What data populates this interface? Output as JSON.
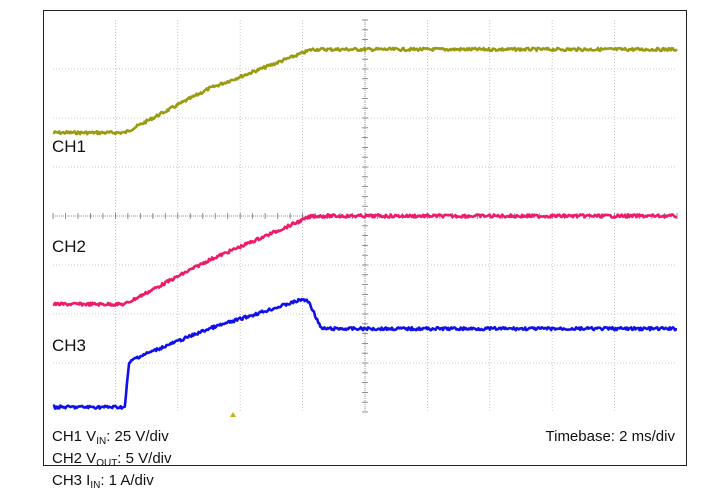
{
  "chart_data": {
    "type": "line",
    "title": "",
    "x_divisions": 10,
    "y_divisions": 8,
    "grid": true,
    "timebase": "Timebase: 2 ms/div",
    "series": [
      {
        "name": "CH1",
        "color": "#9b9b12",
        "unit": "V_IN: 25 V/div",
        "points": [
          [
            0,
            1.7
          ],
          [
            1.15,
            1.7
          ],
          [
            2.5,
            2.6
          ],
          [
            4.15,
            3.4
          ],
          [
            10,
            3.4
          ]
        ]
      },
      {
        "name": "CH2",
        "color": "#ef1a6a",
        "unit": "V_OUT: 5 V/div",
        "points": [
          [
            0,
            -1.8
          ],
          [
            1.15,
            -1.8
          ],
          [
            2.5,
            -0.9
          ],
          [
            4.15,
            0.0
          ],
          [
            10,
            0.0
          ]
        ]
      },
      {
        "name": "CH3",
        "color": "#1010e8",
        "unit": "I_IN: 1 A/div",
        "points": [
          [
            0,
            -3.9
          ],
          [
            1.15,
            -3.9
          ],
          [
            1.22,
            -3.0
          ],
          [
            1.32,
            -2.9
          ],
          [
            2.5,
            -2.3
          ],
          [
            4.0,
            -1.7
          ],
          [
            4.1,
            -1.75
          ],
          [
            4.3,
            -2.3
          ],
          [
            10,
            -2.3
          ]
        ]
      }
    ]
  },
  "labels": {
    "ch1": "CH1",
    "ch2": "CH2",
    "ch3": "CH3"
  },
  "legend": {
    "ch1": {
      "name": "CH1 V",
      "sub": "IN",
      "scale": ": 25 V/div"
    },
    "ch2": {
      "name": "CH2 V",
      "sub": "OUT",
      "scale": ": 5 V/div"
    },
    "ch3": {
      "name": "CH3 I",
      "sub": "IN",
      "scale": ": 1 A/div"
    }
  }
}
